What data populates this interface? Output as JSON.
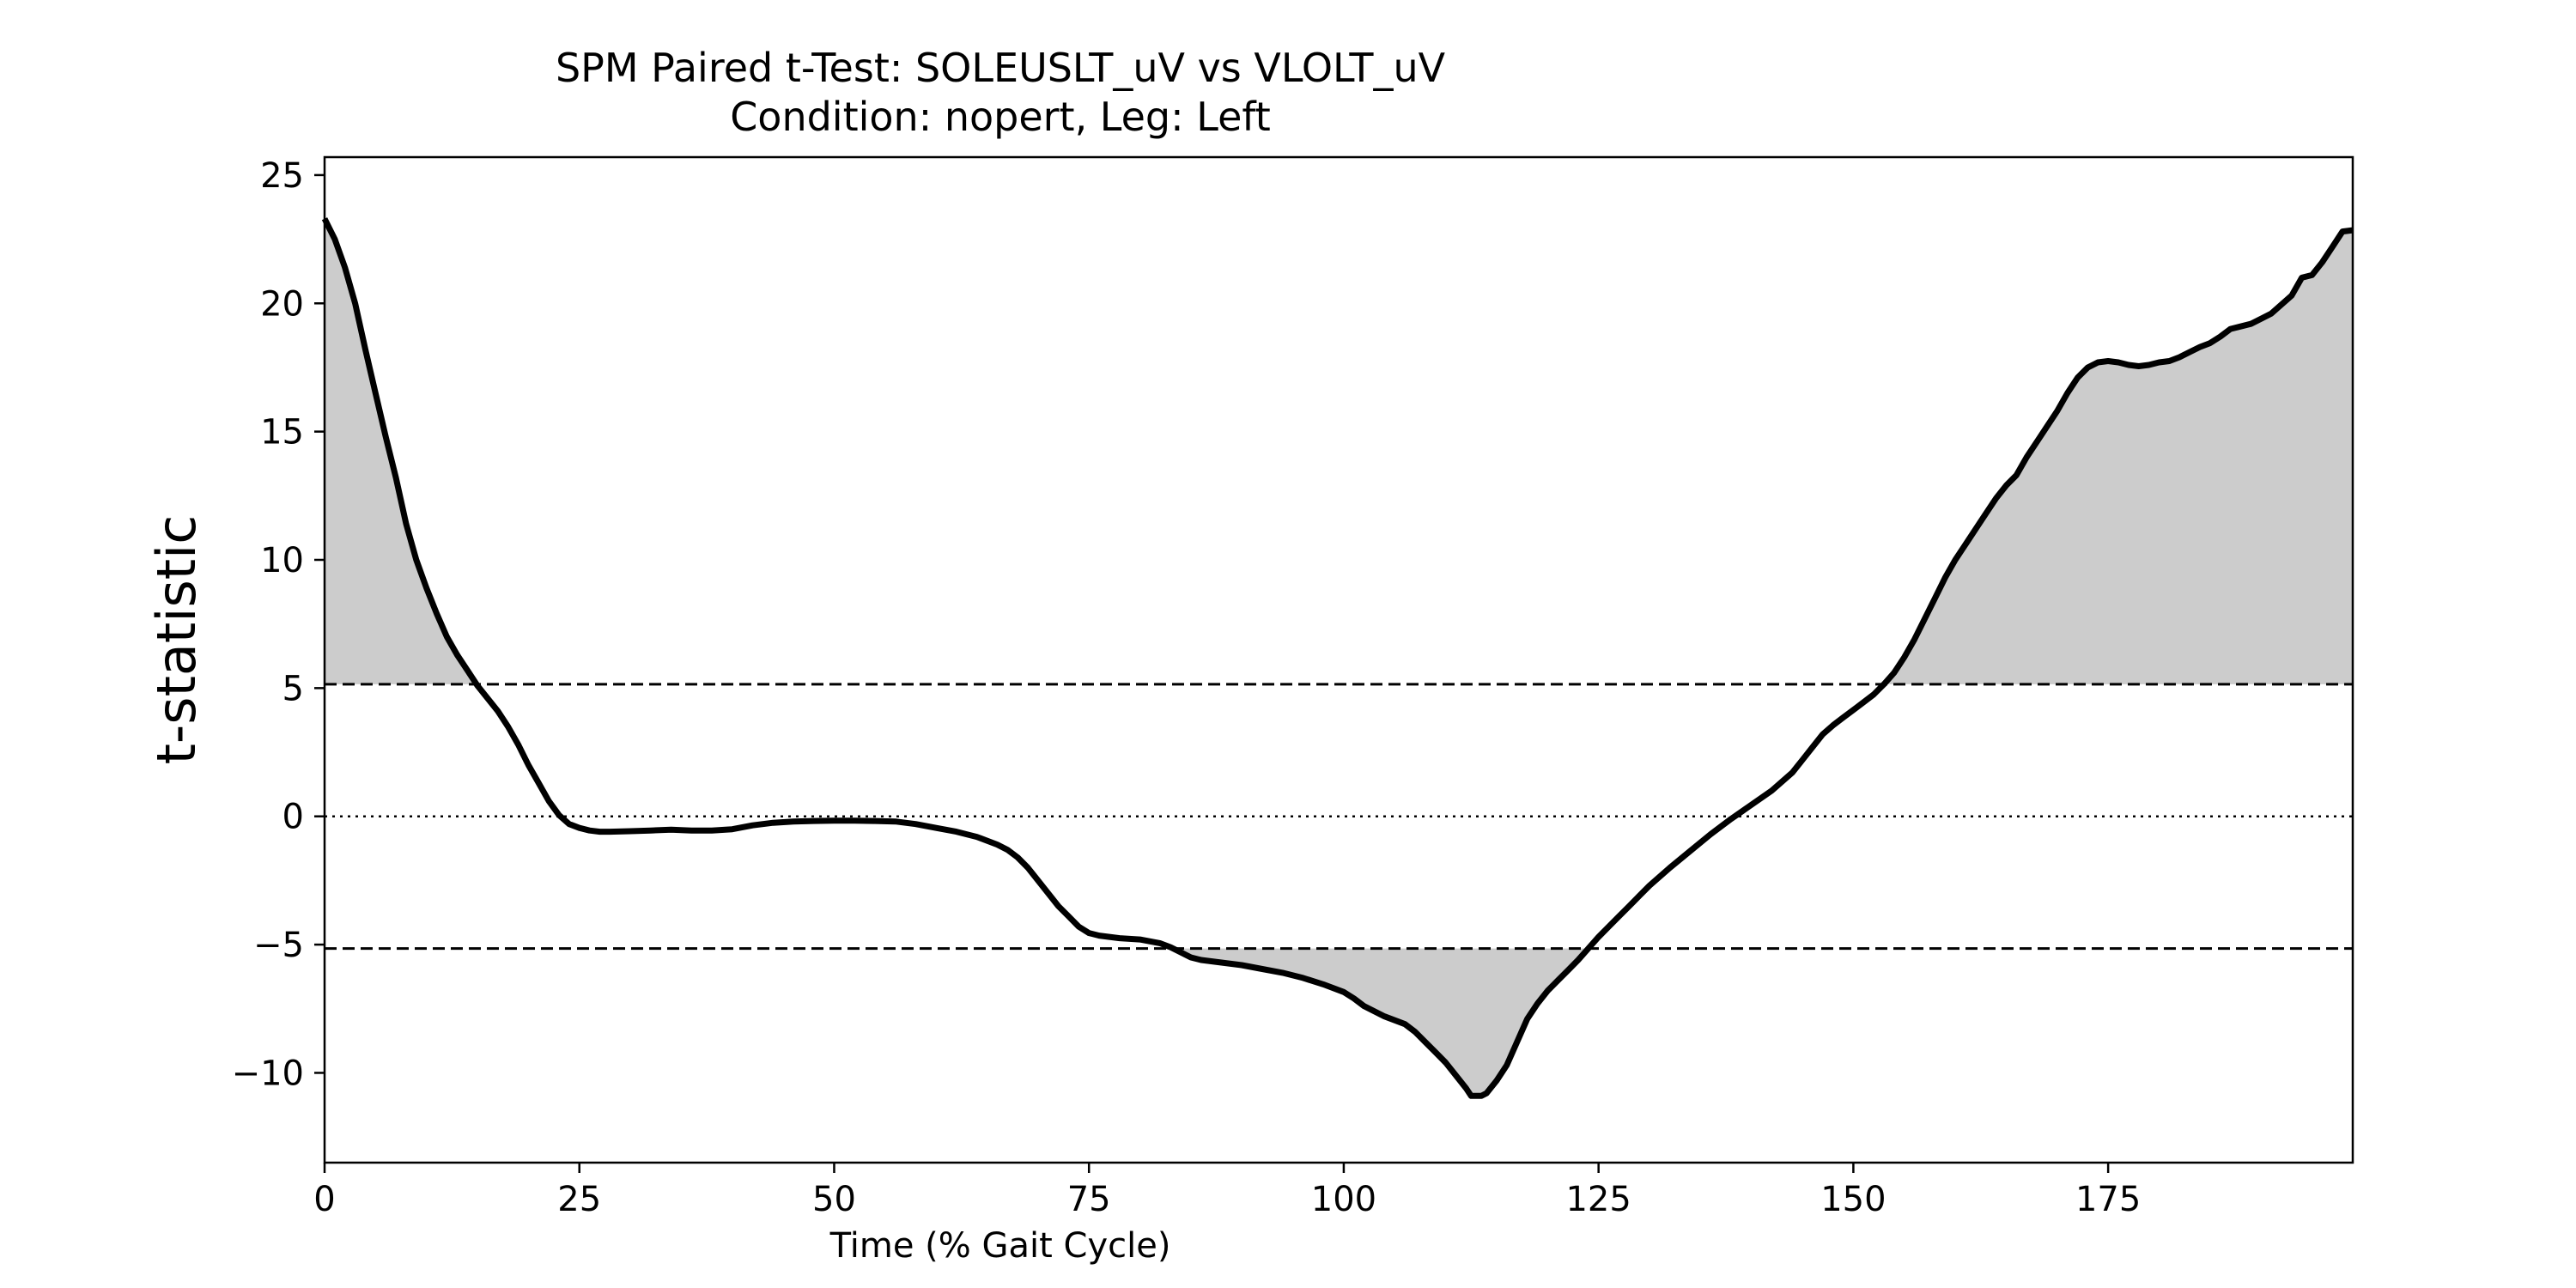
{
  "chart_data": {
    "type": "line",
    "title": "SPM Paired t-Test: SOLEUSLT_uV vs VLOLT_uV",
    "subtitle": "Condition: nopert, Leg: Left",
    "xlabel": "Time (% Gait Cycle)",
    "ylabel": "t-statistic",
    "xlim": [
      0,
      199
    ],
    "ylim": [
      -13.5,
      25.7
    ],
    "xticks": [
      0,
      25,
      50,
      75,
      100,
      125,
      150,
      175
    ],
    "xtick_labels": [
      "0",
      "25",
      "50",
      "75",
      "100",
      "125",
      "150",
      "175"
    ],
    "yticks": [
      25,
      20,
      15,
      10,
      5,
      0,
      -5,
      -10
    ],
    "ytick_labels": [
      "25",
      "20",
      "15",
      "10",
      "5",
      "0",
      "−5",
      "−10"
    ],
    "grid": false,
    "threshold_upper": 5.15,
    "threshold_lower": -5.15,
    "zero_line": 0,
    "series": [
      {
        "values": [
          [
            0,
            23.3
          ],
          [
            1,
            22.5
          ],
          [
            2,
            21.4
          ],
          [
            3,
            20.0
          ],
          [
            4,
            18.2
          ],
          [
            5,
            16.5
          ],
          [
            6,
            14.8
          ],
          [
            7,
            13.2
          ],
          [
            8,
            11.4
          ],
          [
            9,
            10.0
          ],
          [
            10,
            8.9
          ],
          [
            11,
            7.9
          ],
          [
            12,
            7.0
          ],
          [
            13,
            6.3
          ],
          [
            14,
            5.7
          ],
          [
            15,
            5.1
          ],
          [
            16,
            4.6
          ],
          [
            17,
            4.1
          ],
          [
            18,
            3.5
          ],
          [
            19,
            2.8
          ],
          [
            20,
            2.0
          ],
          [
            21,
            1.3
          ],
          [
            22,
            0.6
          ],
          [
            23,
            0.05
          ],
          [
            24,
            -0.3
          ],
          [
            25,
            -0.45
          ],
          [
            26,
            -0.55
          ],
          [
            27,
            -0.6
          ],
          [
            28,
            -0.6
          ],
          [
            30,
            -0.58
          ],
          [
            32,
            -0.55
          ],
          [
            34,
            -0.52
          ],
          [
            36,
            -0.55
          ],
          [
            38,
            -0.55
          ],
          [
            40,
            -0.5
          ],
          [
            42,
            -0.35
          ],
          [
            44,
            -0.25
          ],
          [
            46,
            -0.2
          ],
          [
            48,
            -0.18
          ],
          [
            50,
            -0.17
          ],
          [
            52,
            -0.17
          ],
          [
            54,
            -0.18
          ],
          [
            56,
            -0.2
          ],
          [
            58,
            -0.3
          ],
          [
            60,
            -0.45
          ],
          [
            62,
            -0.6
          ],
          [
            64,
            -0.8
          ],
          [
            66,
            -1.1
          ],
          [
            67,
            -1.3
          ],
          [
            68,
            -1.6
          ],
          [
            69,
            -2.0
          ],
          [
            70,
            -2.5
          ],
          [
            71,
            -3.0
          ],
          [
            72,
            -3.5
          ],
          [
            73,
            -3.9
          ],
          [
            74,
            -4.3
          ],
          [
            75,
            -4.55
          ],
          [
            76,
            -4.65
          ],
          [
            78,
            -4.75
          ],
          [
            80,
            -4.8
          ],
          [
            82,
            -4.95
          ],
          [
            83,
            -5.1
          ],
          [
            84,
            -5.3
          ],
          [
            85,
            -5.5
          ],
          [
            86,
            -5.6
          ],
          [
            88,
            -5.7
          ],
          [
            90,
            -5.8
          ],
          [
            92,
            -5.95
          ],
          [
            94,
            -6.1
          ],
          [
            96,
            -6.3
          ],
          [
            98,
            -6.55
          ],
          [
            100,
            -6.85
          ],
          [
            101,
            -7.1
          ],
          [
            102,
            -7.4
          ],
          [
            104,
            -7.8
          ],
          [
            106,
            -8.1
          ],
          [
            107,
            -8.4
          ],
          [
            108,
            -8.8
          ],
          [
            109,
            -9.2
          ],
          [
            110,
            -9.6
          ],
          [
            111,
            -10.1
          ],
          [
            112,
            -10.6
          ],
          [
            112.5,
            -10.9
          ],
          [
            113.5,
            -10.9
          ],
          [
            114,
            -10.8
          ],
          [
            115,
            -10.3
          ],
          [
            116,
            -9.7
          ],
          [
            117,
            -8.8
          ],
          [
            118,
            -7.9
          ],
          [
            119,
            -7.3
          ],
          [
            120,
            -6.8
          ],
          [
            121,
            -6.4
          ],
          [
            122,
            -6.0
          ],
          [
            123,
            -5.6
          ],
          [
            124,
            -5.15
          ],
          [
            125,
            -4.7
          ],
          [
            126,
            -4.3
          ],
          [
            127,
            -3.9
          ],
          [
            128,
            -3.5
          ],
          [
            129,
            -3.1
          ],
          [
            130,
            -2.7
          ],
          [
            132,
            -2.0
          ],
          [
            134,
            -1.35
          ],
          [
            136,
            -0.7
          ],
          [
            138,
            -0.1
          ],
          [
            140,
            0.45
          ],
          [
            142,
            1.0
          ],
          [
            144,
            1.7
          ],
          [
            145,
            2.2
          ],
          [
            146,
            2.7
          ],
          [
            147,
            3.2
          ],
          [
            148,
            3.55
          ],
          [
            149,
            3.85
          ],
          [
            150,
            4.15
          ],
          [
            151,
            4.45
          ],
          [
            152,
            4.75
          ],
          [
            153,
            5.15
          ],
          [
            154,
            5.6
          ],
          [
            155,
            6.2
          ],
          [
            156,
            6.9
          ],
          [
            157,
            7.7
          ],
          [
            158,
            8.5
          ],
          [
            159,
            9.3
          ],
          [
            160,
            10.0
          ],
          [
            161,
            10.6
          ],
          [
            162,
            11.2
          ],
          [
            163,
            11.8
          ],
          [
            164,
            12.4
          ],
          [
            165,
            12.9
          ],
          [
            166,
            13.3
          ],
          [
            167,
            14.0
          ],
          [
            168,
            14.6
          ],
          [
            169,
            15.2
          ],
          [
            170,
            15.8
          ],
          [
            171,
            16.5
          ],
          [
            172,
            17.1
          ],
          [
            173,
            17.5
          ],
          [
            174,
            17.7
          ],
          [
            175,
            17.75
          ],
          [
            176,
            17.7
          ],
          [
            177,
            17.6
          ],
          [
            178,
            17.55
          ],
          [
            179,
            17.6
          ],
          [
            180,
            17.7
          ],
          [
            181,
            17.75
          ],
          [
            182,
            17.9
          ],
          [
            183,
            18.1
          ],
          [
            184,
            18.3
          ],
          [
            185,
            18.45
          ],
          [
            186,
            18.7
          ],
          [
            187,
            19.0
          ],
          [
            188,
            19.1
          ],
          [
            189,
            19.2
          ],
          [
            190,
            19.4
          ],
          [
            191,
            19.6
          ],
          [
            192,
            19.95
          ],
          [
            193,
            20.3
          ],
          [
            194,
            21.0
          ],
          [
            195,
            21.1
          ],
          [
            196,
            21.6
          ],
          [
            197,
            22.2
          ],
          [
            198,
            22.8
          ],
          [
            199,
            22.85
          ]
        ]
      }
    ],
    "colors": {
      "line": "#000000",
      "fill": "#cccccc",
      "threshold": "#000000",
      "axes": "#000000",
      "background": "#ffffff"
    }
  }
}
